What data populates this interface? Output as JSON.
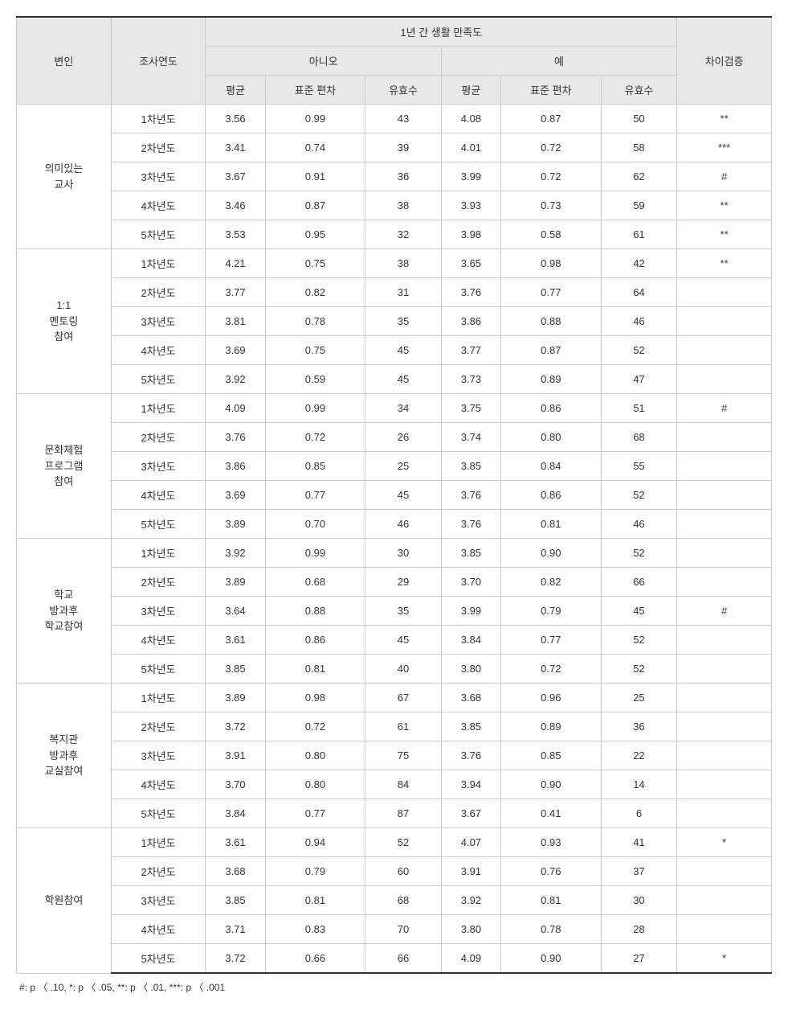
{
  "table": {
    "header": {
      "col_variable": "변인",
      "col_year": "조사연도",
      "col_satisfaction": "1년 간 생활 만족도",
      "col_no": "아니오",
      "col_yes": "예",
      "col_mean": "평균",
      "col_sd": "표준 편차",
      "col_n": "유효수",
      "col_diff": "차이검증"
    },
    "groups": [
      {
        "label": "의미있는\n교사",
        "rows": [
          {
            "year": "1차년도",
            "no_mean": "3.56",
            "no_sd": "0.99",
            "no_n": "43",
            "yes_mean": "4.08",
            "yes_sd": "0.87",
            "yes_n": "50",
            "diff": "**"
          },
          {
            "year": "2차년도",
            "no_mean": "3.41",
            "no_sd": "0.74",
            "no_n": "39",
            "yes_mean": "4.01",
            "yes_sd": "0.72",
            "yes_n": "58",
            "diff": "***"
          },
          {
            "year": "3차년도",
            "no_mean": "3.67",
            "no_sd": "0.91",
            "no_n": "36",
            "yes_mean": "3.99",
            "yes_sd": "0.72",
            "yes_n": "62",
            "diff": "#"
          },
          {
            "year": "4차년도",
            "no_mean": "3.46",
            "no_sd": "0.87",
            "no_n": "38",
            "yes_mean": "3.93",
            "yes_sd": "0.73",
            "yes_n": "59",
            "diff": "**"
          },
          {
            "year": "5차년도",
            "no_mean": "3.53",
            "no_sd": "0.95",
            "no_n": "32",
            "yes_mean": "3.98",
            "yes_sd": "0.58",
            "yes_n": "61",
            "diff": "**"
          }
        ]
      },
      {
        "label": "1:1\n멘토링\n참여",
        "rows": [
          {
            "year": "1차년도",
            "no_mean": "4.21",
            "no_sd": "0.75",
            "no_n": "38",
            "yes_mean": "3.65",
            "yes_sd": "0.98",
            "yes_n": "42",
            "diff": "**"
          },
          {
            "year": "2차년도",
            "no_mean": "3.77",
            "no_sd": "0.82",
            "no_n": "31",
            "yes_mean": "3.76",
            "yes_sd": "0.77",
            "yes_n": "64",
            "diff": ""
          },
          {
            "year": "3차년도",
            "no_mean": "3.81",
            "no_sd": "0.78",
            "no_n": "35",
            "yes_mean": "3.86",
            "yes_sd": "0.88",
            "yes_n": "46",
            "diff": ""
          },
          {
            "year": "4차년도",
            "no_mean": "3.69",
            "no_sd": "0.75",
            "no_n": "45",
            "yes_mean": "3.77",
            "yes_sd": "0.87",
            "yes_n": "52",
            "diff": ""
          },
          {
            "year": "5차년도",
            "no_mean": "3.92",
            "no_sd": "0.59",
            "no_n": "45",
            "yes_mean": "3.73",
            "yes_sd": "0.89",
            "yes_n": "47",
            "diff": ""
          }
        ]
      },
      {
        "label": "문화체험\n프로그램\n참여",
        "rows": [
          {
            "year": "1차년도",
            "no_mean": "4.09",
            "no_sd": "0.99",
            "no_n": "34",
            "yes_mean": "3.75",
            "yes_sd": "0.86",
            "yes_n": "51",
            "diff": "#"
          },
          {
            "year": "2차년도",
            "no_mean": "3.76",
            "no_sd": "0.72",
            "no_n": "26",
            "yes_mean": "3.74",
            "yes_sd": "0.80",
            "yes_n": "68",
            "diff": ""
          },
          {
            "year": "3차년도",
            "no_mean": "3.86",
            "no_sd": "0.85",
            "no_n": "25",
            "yes_mean": "3.85",
            "yes_sd": "0.84",
            "yes_n": "55",
            "diff": ""
          },
          {
            "year": "4차년도",
            "no_mean": "3.69",
            "no_sd": "0.77",
            "no_n": "45",
            "yes_mean": "3.76",
            "yes_sd": "0.86",
            "yes_n": "52",
            "diff": ""
          },
          {
            "year": "5차년도",
            "no_mean": "3.89",
            "no_sd": "0.70",
            "no_n": "46",
            "yes_mean": "3.76",
            "yes_sd": "0.81",
            "yes_n": "46",
            "diff": ""
          }
        ]
      },
      {
        "label": "학교\n방과후\n학교참여",
        "rows": [
          {
            "year": "1차년도",
            "no_mean": "3.92",
            "no_sd": "0.99",
            "no_n": "30",
            "yes_mean": "3.85",
            "yes_sd": "0.90",
            "yes_n": "52",
            "diff": ""
          },
          {
            "year": "2차년도",
            "no_mean": "3.89",
            "no_sd": "0.68",
            "no_n": "29",
            "yes_mean": "3.70",
            "yes_sd": "0.82",
            "yes_n": "66",
            "diff": ""
          },
          {
            "year": "3차년도",
            "no_mean": "3.64",
            "no_sd": "0.88",
            "no_n": "35",
            "yes_mean": "3.99",
            "yes_sd": "0.79",
            "yes_n": "45",
            "diff": "#"
          },
          {
            "year": "4차년도",
            "no_mean": "3.61",
            "no_sd": "0.86",
            "no_n": "45",
            "yes_mean": "3.84",
            "yes_sd": "0.77",
            "yes_n": "52",
            "diff": ""
          },
          {
            "year": "5차년도",
            "no_mean": "3.85",
            "no_sd": "0.81",
            "no_n": "40",
            "yes_mean": "3.80",
            "yes_sd": "0.72",
            "yes_n": "52",
            "diff": ""
          }
        ]
      },
      {
        "label": "복지관\n방과후\n교실참여",
        "rows": [
          {
            "year": "1차년도",
            "no_mean": "3.89",
            "no_sd": "0.98",
            "no_n": "67",
            "yes_mean": "3.68",
            "yes_sd": "0.96",
            "yes_n": "25",
            "diff": ""
          },
          {
            "year": "2차년도",
            "no_mean": "3.72",
            "no_sd": "0.72",
            "no_n": "61",
            "yes_mean": "3.85",
            "yes_sd": "0.89",
            "yes_n": "36",
            "diff": ""
          },
          {
            "year": "3차년도",
            "no_mean": "3.91",
            "no_sd": "0.80",
            "no_n": "75",
            "yes_mean": "3.76",
            "yes_sd": "0.85",
            "yes_n": "22",
            "diff": ""
          },
          {
            "year": "4차년도",
            "no_mean": "3.70",
            "no_sd": "0.80",
            "no_n": "84",
            "yes_mean": "3.94",
            "yes_sd": "0.90",
            "yes_n": "14",
            "diff": ""
          },
          {
            "year": "5차년도",
            "no_mean": "3.84",
            "no_sd": "0.77",
            "no_n": "87",
            "yes_mean": "3.67",
            "yes_sd": "0.41",
            "yes_n": "6",
            "diff": ""
          }
        ]
      },
      {
        "label": "학원참여",
        "rows": [
          {
            "year": "1차년도",
            "no_mean": "3.61",
            "no_sd": "0.94",
            "no_n": "52",
            "yes_mean": "4.07",
            "yes_sd": "0.93",
            "yes_n": "41",
            "diff": "*"
          },
          {
            "year": "2차년도",
            "no_mean": "3.68",
            "no_sd": "0.79",
            "no_n": "60",
            "yes_mean": "3.91",
            "yes_sd": "0.76",
            "yes_n": "37",
            "diff": ""
          },
          {
            "year": "3차년도",
            "no_mean": "3.85",
            "no_sd": "0.81",
            "no_n": "68",
            "yes_mean": "3.92",
            "yes_sd": "0.81",
            "yes_n": "30",
            "diff": ""
          },
          {
            "year": "4차년도",
            "no_mean": "3.71",
            "no_sd": "0.83",
            "no_n": "70",
            "yes_mean": "3.80",
            "yes_sd": "0.78",
            "yes_n": "28",
            "diff": ""
          },
          {
            "year": "5차년도",
            "no_mean": "3.72",
            "no_sd": "0.66",
            "no_n": "66",
            "yes_mean": "4.09",
            "yes_sd": "0.90",
            "yes_n": "27",
            "diff": "*"
          }
        ]
      }
    ],
    "footnote": "#: p 〈 .10,  *: p 〈 .05,  **: p 〈 .01,  ***: p 〈 .001"
  },
  "style": {
    "header_bg": "#e8e8e8",
    "border_color": "#cccccc",
    "outer_border_color": "#333333",
    "font_family": "Malgun Gothic",
    "font_size_body": 13,
    "font_size_footnote": 12
  }
}
